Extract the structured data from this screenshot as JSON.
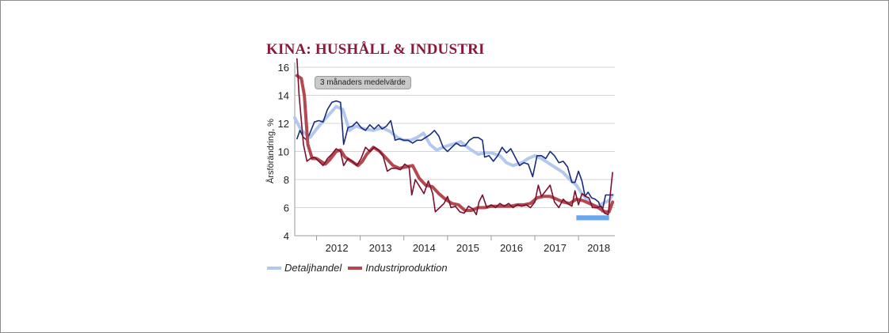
{
  "chart_data": {
    "type": "line",
    "title": "KINA: HUSHÅLL & INDUSTRI",
    "ylabel": "Årsförändring, %",
    "xlabel": "",
    "ylim": [
      4,
      16
    ],
    "yticks": [
      4,
      6,
      8,
      10,
      12,
      14,
      16
    ],
    "xlim": [
      2011.5,
      2018.833
    ],
    "xticks": [
      {
        "label": "2012",
        "x": 2012.0
      },
      {
        "label": "2013",
        "x": 2013.0
      },
      {
        "label": "2014",
        "x": 2014.0
      },
      {
        "label": "2015",
        "x": 2015.0
      },
      {
        "label": "2016",
        "x": 2016.0
      },
      {
        "label": "2017",
        "x": 2017.0
      },
      {
        "label": "2018",
        "x": 2018.0
      }
    ],
    "annotation": "3 månaders medelvärde",
    "grid": "horizontal",
    "legend_position": "bottom-left",
    "series": [
      {
        "name": "Detaljhandel",
        "style": "smoothed",
        "color": "#b3c8ef",
        "points": [
          [
            2011.5,
            12.4
          ],
          [
            2011.65,
            11.5
          ],
          [
            2011.85,
            11.0
          ],
          [
            2012.0,
            11.6
          ],
          [
            2012.25,
            12.5
          ],
          [
            2012.45,
            13.2
          ],
          [
            2012.6,
            13.0
          ],
          [
            2012.75,
            11.5
          ],
          [
            2012.9,
            11.8
          ],
          [
            2013.1,
            11.6
          ],
          [
            2013.3,
            11.5
          ],
          [
            2013.5,
            11.7
          ],
          [
            2013.7,
            11.4
          ],
          [
            2013.85,
            11.0
          ],
          [
            2014.0,
            10.8
          ],
          [
            2014.15,
            10.8
          ],
          [
            2014.3,
            11.0
          ],
          [
            2014.45,
            11.3
          ],
          [
            2014.6,
            10.5
          ],
          [
            2014.75,
            10.1
          ],
          [
            2014.9,
            10.3
          ],
          [
            2015.1,
            10.5
          ],
          [
            2015.3,
            10.7
          ],
          [
            2015.5,
            10.2
          ],
          [
            2015.7,
            9.8
          ],
          [
            2015.85,
            9.9
          ],
          [
            2016.0,
            9.9
          ],
          [
            2016.2,
            9.7
          ],
          [
            2016.35,
            9.2
          ],
          [
            2016.5,
            9.0
          ],
          [
            2016.7,
            9.2
          ],
          [
            2016.85,
            9.5
          ],
          [
            2017.0,
            9.7
          ],
          [
            2017.15,
            9.5
          ],
          [
            2017.3,
            9.2
          ],
          [
            2017.5,
            8.8
          ],
          [
            2017.65,
            8.5
          ],
          [
            2017.8,
            8.0
          ],
          [
            2017.95,
            7.6
          ],
          [
            2018.1,
            6.9
          ],
          [
            2018.25,
            6.4
          ],
          [
            2018.4,
            6.0
          ],
          [
            2018.55,
            6.3
          ],
          [
            2018.7,
            6.5
          ],
          [
            2018.78,
            6.9
          ]
        ]
      },
      {
        "name": "",
        "style": "monthly",
        "color": "#1a2b7a",
        "points": [
          [
            2011.55,
            10.9
          ],
          [
            2011.62,
            11.5
          ],
          [
            2011.7,
            11.0
          ],
          [
            2011.78,
            10.8
          ],
          [
            2011.86,
            11.4
          ],
          [
            2011.95,
            12.1
          ],
          [
            2012.05,
            12.2
          ],
          [
            2012.15,
            12.1
          ],
          [
            2012.25,
            13.0
          ],
          [
            2012.35,
            13.5
          ],
          [
            2012.45,
            13.6
          ],
          [
            2012.55,
            13.5
          ],
          [
            2012.62,
            10.5
          ],
          [
            2012.72,
            11.7
          ],
          [
            2012.82,
            11.8
          ],
          [
            2012.92,
            12.1
          ],
          [
            2013.02,
            11.7
          ],
          [
            2013.12,
            11.5
          ],
          [
            2013.22,
            11.9
          ],
          [
            2013.32,
            11.6
          ],
          [
            2013.42,
            11.9
          ],
          [
            2013.5,
            11.6
          ],
          [
            2013.6,
            11.8
          ],
          [
            2013.7,
            12.2
          ],
          [
            2013.8,
            10.8
          ],
          [
            2013.9,
            10.9
          ],
          [
            2014.0,
            10.8
          ],
          [
            2014.1,
            10.8
          ],
          [
            2014.2,
            10.6
          ],
          [
            2014.3,
            10.8
          ],
          [
            2014.4,
            10.8
          ],
          [
            2014.5,
            11.0
          ],
          [
            2014.6,
            11.2
          ],
          [
            2014.7,
            11.5
          ],
          [
            2014.8,
            11.1
          ],
          [
            2014.9,
            10.3
          ],
          [
            2015.0,
            10.0
          ],
          [
            2015.1,
            10.3
          ],
          [
            2015.2,
            10.6
          ],
          [
            2015.3,
            10.4
          ],
          [
            2015.4,
            10.4
          ],
          [
            2015.5,
            10.8
          ],
          [
            2015.6,
            11.0
          ],
          [
            2015.7,
            11.0
          ],
          [
            2015.8,
            10.8
          ],
          [
            2015.85,
            9.6
          ],
          [
            2015.95,
            9.7
          ],
          [
            2016.05,
            9.3
          ],
          [
            2016.15,
            9.7
          ],
          [
            2016.25,
            10.3
          ],
          [
            2016.35,
            9.9
          ],
          [
            2016.45,
            10.2
          ],
          [
            2016.55,
            9.6
          ],
          [
            2016.65,
            9.0
          ],
          [
            2016.75,
            9.2
          ],
          [
            2016.85,
            9.1
          ],
          [
            2016.95,
            8.2
          ],
          [
            2017.05,
            9.7
          ],
          [
            2017.15,
            9.7
          ],
          [
            2017.25,
            9.5
          ],
          [
            2017.35,
            10.0
          ],
          [
            2017.45,
            9.7
          ],
          [
            2017.55,
            9.2
          ],
          [
            2017.65,
            9.3
          ],
          [
            2017.75,
            8.9
          ],
          [
            2017.85,
            7.8
          ],
          [
            2017.92,
            7.8
          ],
          [
            2018.0,
            8.6
          ],
          [
            2018.08,
            7.9
          ],
          [
            2018.15,
            6.8
          ],
          [
            2018.22,
            7.1
          ],
          [
            2018.3,
            6.7
          ],
          [
            2018.38,
            6.6
          ],
          [
            2018.46,
            6.4
          ],
          [
            2018.54,
            5.7
          ],
          [
            2018.62,
            6.9
          ],
          [
            2018.7,
            6.9
          ],
          [
            2018.78,
            6.9
          ]
        ]
      },
      {
        "name": "Industriproduktion",
        "style": "smoothed",
        "color": "#b5484e",
        "points": [
          [
            2011.55,
            15.4
          ],
          [
            2011.65,
            15.2
          ],
          [
            2011.72,
            14.0
          ],
          [
            2011.8,
            10.5
          ],
          [
            2011.9,
            9.5
          ],
          [
            2012.0,
            9.5
          ],
          [
            2012.1,
            9.3
          ],
          [
            2012.2,
            9.1
          ],
          [
            2012.3,
            9.4
          ],
          [
            2012.45,
            10.0
          ],
          [
            2012.55,
            10.1
          ],
          [
            2012.65,
            9.6
          ],
          [
            2012.8,
            9.3
          ],
          [
            2012.95,
            9.0
          ],
          [
            2013.05,
            9.3
          ],
          [
            2013.15,
            9.8
          ],
          [
            2013.3,
            10.3
          ],
          [
            2013.45,
            10.0
          ],
          [
            2013.6,
            9.5
          ],
          [
            2013.75,
            9.0
          ],
          [
            2013.9,
            8.8
          ],
          [
            2014.05,
            8.9
          ],
          [
            2014.2,
            9.0
          ],
          [
            2014.35,
            8.1
          ],
          [
            2014.5,
            7.6
          ],
          [
            2014.65,
            7.5
          ],
          [
            2014.8,
            7.0
          ],
          [
            2014.95,
            6.6
          ],
          [
            2015.1,
            6.3
          ],
          [
            2015.25,
            6.2
          ],
          [
            2015.4,
            5.8
          ],
          [
            2015.55,
            5.8
          ],
          [
            2015.7,
            6.0
          ],
          [
            2015.85,
            6.0
          ],
          [
            2016.0,
            6.1
          ],
          [
            2016.15,
            6.1
          ],
          [
            2016.3,
            6.1
          ],
          [
            2016.45,
            6.1
          ],
          [
            2016.6,
            6.2
          ],
          [
            2016.75,
            6.2
          ],
          [
            2016.9,
            6.3
          ],
          [
            2017.05,
            6.7
          ],
          [
            2017.2,
            6.8
          ],
          [
            2017.35,
            6.8
          ],
          [
            2017.5,
            6.6
          ],
          [
            2017.65,
            6.4
          ],
          [
            2017.8,
            6.3
          ],
          [
            2017.95,
            6.6
          ],
          [
            2018.1,
            6.5
          ],
          [
            2018.25,
            6.3
          ],
          [
            2018.4,
            6.1
          ],
          [
            2018.5,
            5.9
          ],
          [
            2018.6,
            5.7
          ],
          [
            2018.7,
            5.7
          ],
          [
            2018.78,
            6.4
          ]
        ]
      },
      {
        "name": "",
        "style": "monthly",
        "color": "#7a1030",
        "points": [
          [
            2011.55,
            16.6
          ],
          [
            2011.6,
            14.0
          ],
          [
            2011.7,
            10.5
          ],
          [
            2011.78,
            9.3
          ],
          [
            2011.86,
            9.5
          ],
          [
            2011.95,
            9.6
          ],
          [
            2012.05,
            9.3
          ],
          [
            2012.15,
            9.0
          ],
          [
            2012.25,
            9.5
          ],
          [
            2012.35,
            9.8
          ],
          [
            2012.45,
            10.2
          ],
          [
            2012.55,
            10.0
          ],
          [
            2012.62,
            9.0
          ],
          [
            2012.72,
            9.5
          ],
          [
            2012.82,
            9.3
          ],
          [
            2012.92,
            9.0
          ],
          [
            2013.02,
            9.5
          ],
          [
            2013.12,
            10.3
          ],
          [
            2013.22,
            10.0
          ],
          [
            2013.32,
            10.3
          ],
          [
            2013.42,
            10.1
          ],
          [
            2013.52,
            9.7
          ],
          [
            2013.62,
            8.6
          ],
          [
            2013.72,
            8.8
          ],
          [
            2013.82,
            8.8
          ],
          [
            2013.92,
            8.7
          ],
          [
            2014.02,
            9.1
          ],
          [
            2014.12,
            8.9
          ],
          [
            2014.18,
            6.9
          ],
          [
            2014.26,
            8.0
          ],
          [
            2014.36,
            7.5
          ],
          [
            2014.46,
            7.0
          ],
          [
            2014.56,
            7.9
          ],
          [
            2014.66,
            7.0
          ],
          [
            2014.72,
            5.7
          ],
          [
            2014.82,
            6.0
          ],
          [
            2014.92,
            6.3
          ],
          [
            2015.0,
            6.8
          ],
          [
            2015.08,
            6.0
          ],
          [
            2015.18,
            6.1
          ],
          [
            2015.28,
            5.7
          ],
          [
            2015.38,
            5.6
          ],
          [
            2015.48,
            6.1
          ],
          [
            2015.58,
            5.9
          ],
          [
            2015.66,
            5.5
          ],
          [
            2015.72,
            6.4
          ],
          [
            2015.8,
            6.9
          ],
          [
            2015.9,
            6.0
          ],
          [
            2016.0,
            6.2
          ],
          [
            2016.1,
            6.0
          ],
          [
            2016.2,
            6.3
          ],
          [
            2016.3,
            6.1
          ],
          [
            2016.4,
            6.3
          ],
          [
            2016.5,
            6.0
          ],
          [
            2016.6,
            6.2
          ],
          [
            2016.7,
            6.1
          ],
          [
            2016.8,
            6.2
          ],
          [
            2016.9,
            6.0
          ],
          [
            2017.0,
            6.4
          ],
          [
            2017.08,
            7.6
          ],
          [
            2017.15,
            6.8
          ],
          [
            2017.25,
            7.2
          ],
          [
            2017.35,
            7.6
          ],
          [
            2017.45,
            6.4
          ],
          [
            2017.55,
            6.0
          ],
          [
            2017.65,
            6.6
          ],
          [
            2017.75,
            6.3
          ],
          [
            2017.85,
            6.1
          ],
          [
            2017.92,
            7.2
          ],
          [
            2018.0,
            6.2
          ],
          [
            2018.08,
            7.0
          ],
          [
            2018.16,
            6.8
          ],
          [
            2018.24,
            6.7
          ],
          [
            2018.32,
            6.0
          ],
          [
            2018.42,
            6.0
          ],
          [
            2018.52,
            6.1
          ],
          [
            2018.6,
            5.6
          ],
          [
            2018.68,
            5.5
          ],
          [
            2018.78,
            8.5
          ]
        ]
      }
    ],
    "highlight_band": {
      "x0": 2017.95,
      "x1": 2018.7,
      "y0": 5.1,
      "y1": 5.45,
      "color": "#6aa6f0"
    }
  }
}
